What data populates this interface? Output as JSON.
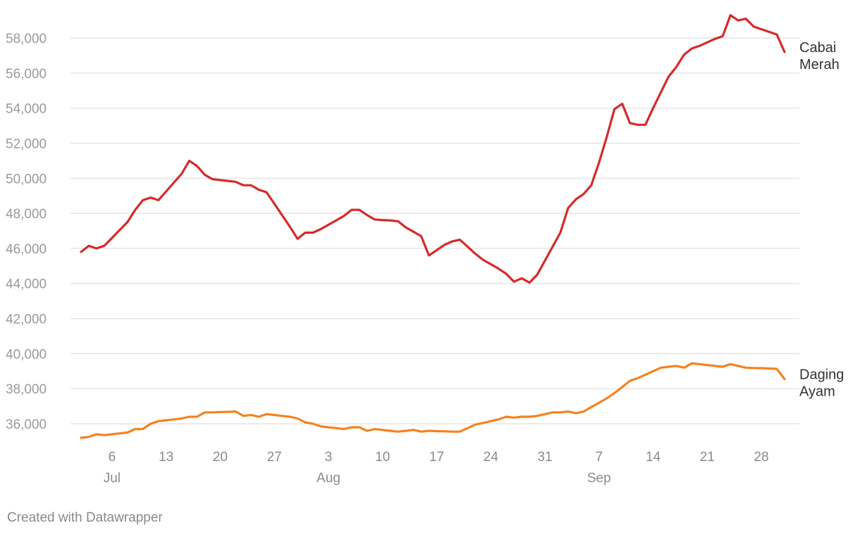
{
  "chart_data": {
    "type": "line",
    "y_ticks": [
      36000,
      38000,
      40000,
      42000,
      44000,
      46000,
      48000,
      50000,
      52000,
      54000,
      56000,
      58000
    ],
    "y_tick_labels": [
      "36,000",
      "38,000",
      "40,000",
      "42,000",
      "44,000",
      "46,000",
      "48,000",
      "50,000",
      "52,000",
      "54,000",
      "56,000",
      "58,000"
    ],
    "ylim": [
      35000,
      59400
    ],
    "xlim": [
      "2021-07-02",
      "2021-09-30"
    ],
    "x_ticks": [
      {
        "date": "2021-07-06",
        "label": "6",
        "month": "Jul"
      },
      {
        "date": "2021-07-13",
        "label": "13",
        "month": ""
      },
      {
        "date": "2021-07-20",
        "label": "20",
        "month": ""
      },
      {
        "date": "2021-07-27",
        "label": "27",
        "month": ""
      },
      {
        "date": "2021-08-03",
        "label": "3",
        "month": "Aug"
      },
      {
        "date": "2021-08-10",
        "label": "10",
        "month": ""
      },
      {
        "date": "2021-08-17",
        "label": "17",
        "month": ""
      },
      {
        "date": "2021-08-24",
        "label": "24",
        "month": ""
      },
      {
        "date": "2021-08-31",
        "label": "31",
        "month": ""
      },
      {
        "date": "2021-09-07",
        "label": "7",
        "month": "Sep"
      },
      {
        "date": "2021-09-14",
        "label": "14",
        "month": ""
      },
      {
        "date": "2021-09-21",
        "label": "21",
        "month": ""
      },
      {
        "date": "2021-09-28",
        "label": "28",
        "month": ""
      }
    ],
    "grid": true,
    "series": [
      {
        "name": "Cabai Merah",
        "label_lines": [
          "Cabai",
          "Merah"
        ],
        "color": "#d52a2a",
        "points": [
          [
            "2021-07-02",
            45800
          ],
          [
            "2021-07-03",
            46150
          ],
          [
            "2021-07-04",
            46000
          ],
          [
            "2021-07-05",
            46150
          ],
          [
            "2021-07-06",
            46600
          ],
          [
            "2021-07-07",
            47050
          ],
          [
            "2021-07-08",
            47500
          ],
          [
            "2021-07-09",
            48200
          ],
          [
            "2021-07-10",
            48750
          ],
          [
            "2021-07-11",
            48900
          ],
          [
            "2021-07-12",
            48750
          ],
          [
            "2021-07-13",
            49250
          ],
          [
            "2021-07-14",
            49750
          ],
          [
            "2021-07-15",
            50250
          ],
          [
            "2021-07-16",
            51000
          ],
          [
            "2021-07-17",
            50700
          ],
          [
            "2021-07-18",
            50200
          ],
          [
            "2021-07-19",
            49950
          ],
          [
            "2021-07-20",
            49900
          ],
          [
            "2021-07-21",
            49850
          ],
          [
            "2021-07-22",
            49800
          ],
          [
            "2021-07-23",
            49600
          ],
          [
            "2021-07-24",
            49600
          ],
          [
            "2021-07-25",
            49350
          ],
          [
            "2021-07-26",
            49200
          ],
          [
            "2021-07-27",
            48550
          ],
          [
            "2021-07-28",
            47900
          ],
          [
            "2021-07-29",
            47250
          ],
          [
            "2021-07-30",
            46550
          ],
          [
            "2021-07-31",
            46900
          ],
          [
            "2021-08-01",
            46900
          ],
          [
            "2021-08-02",
            47100
          ],
          [
            "2021-08-03",
            47350
          ],
          [
            "2021-08-04",
            47600
          ],
          [
            "2021-08-05",
            47850
          ],
          [
            "2021-08-06",
            48200
          ],
          [
            "2021-08-07",
            48200
          ],
          [
            "2021-08-08",
            47900
          ],
          [
            "2021-08-09",
            47650
          ],
          [
            "2021-08-10",
            47620
          ],
          [
            "2021-08-11",
            47600
          ],
          [
            "2021-08-12",
            47550
          ],
          [
            "2021-08-13",
            47200
          ],
          [
            "2021-08-14",
            46950
          ],
          [
            "2021-08-15",
            46700
          ],
          [
            "2021-08-16",
            45600
          ],
          [
            "2021-08-17",
            45900
          ],
          [
            "2021-08-18",
            46200
          ],
          [
            "2021-08-19",
            46400
          ],
          [
            "2021-08-20",
            46500
          ],
          [
            "2021-08-21",
            46100
          ],
          [
            "2021-08-22",
            45700
          ],
          [
            "2021-08-23",
            45350
          ],
          [
            "2021-08-24",
            45100
          ],
          [
            "2021-08-25",
            44850
          ],
          [
            "2021-08-26",
            44550
          ],
          [
            "2021-08-27",
            44100
          ],
          [
            "2021-08-28",
            44300
          ],
          [
            "2021-08-29",
            44050
          ],
          [
            "2021-08-30",
            44500
          ],
          [
            "2021-08-31",
            45300
          ],
          [
            "2021-09-01",
            46100
          ],
          [
            "2021-09-02",
            46900
          ],
          [
            "2021-09-03",
            48300
          ],
          [
            "2021-09-04",
            48800
          ],
          [
            "2021-09-05",
            49100
          ],
          [
            "2021-09-06",
            49600
          ],
          [
            "2021-09-07",
            50900
          ],
          [
            "2021-09-08",
            52350
          ],
          [
            "2021-09-09",
            53950
          ],
          [
            "2021-09-10",
            54250
          ],
          [
            "2021-09-11",
            53150
          ],
          [
            "2021-09-12",
            53050
          ],
          [
            "2021-09-13",
            53050
          ],
          [
            "2021-09-14",
            54000
          ],
          [
            "2021-09-15",
            54900
          ],
          [
            "2021-09-16",
            55800
          ],
          [
            "2021-09-17",
            56350
          ],
          [
            "2021-09-18",
            57050
          ],
          [
            "2021-09-19",
            57400
          ],
          [
            "2021-09-20",
            57550
          ],
          [
            "2021-09-21",
            57750
          ],
          [
            "2021-09-22",
            57950
          ],
          [
            "2021-09-23",
            58100
          ],
          [
            "2021-09-24",
            59300
          ],
          [
            "2021-09-25",
            59000
          ],
          [
            "2021-09-26",
            59100
          ],
          [
            "2021-09-27",
            58650
          ],
          [
            "2021-09-28",
            58500
          ],
          [
            "2021-09-29",
            58350
          ],
          [
            "2021-09-30",
            58200
          ],
          [
            "2021-10-01",
            57200
          ]
        ]
      },
      {
        "name": "Daging Ayam",
        "label_lines": [
          "Daging",
          "Ayam"
        ],
        "color": "#f5821f",
        "points": [
          [
            "2021-07-02",
            35200
          ],
          [
            "2021-07-03",
            35250
          ],
          [
            "2021-07-04",
            35400
          ],
          [
            "2021-07-05",
            35350
          ],
          [
            "2021-07-06",
            35400
          ],
          [
            "2021-07-07",
            35450
          ],
          [
            "2021-07-08",
            35500
          ],
          [
            "2021-07-09",
            35700
          ],
          [
            "2021-07-10",
            35700
          ],
          [
            "2021-07-11",
            36000
          ],
          [
            "2021-07-12",
            36150
          ],
          [
            "2021-07-13",
            36200
          ],
          [
            "2021-07-14",
            36250
          ],
          [
            "2021-07-15",
            36300
          ],
          [
            "2021-07-16",
            36400
          ],
          [
            "2021-07-17",
            36400
          ],
          [
            "2021-07-18",
            36650
          ],
          [
            "2021-07-19",
            36650
          ],
          [
            "2021-07-20",
            36670
          ],
          [
            "2021-07-21",
            36680
          ],
          [
            "2021-07-22",
            36700
          ],
          [
            "2021-07-23",
            36450
          ],
          [
            "2021-07-24",
            36500
          ],
          [
            "2021-07-25",
            36400
          ],
          [
            "2021-07-26",
            36550
          ],
          [
            "2021-07-27",
            36500
          ],
          [
            "2021-07-28",
            36450
          ],
          [
            "2021-07-29",
            36400
          ],
          [
            "2021-07-30",
            36300
          ],
          [
            "2021-07-31",
            36080
          ],
          [
            "2021-08-01",
            36000
          ],
          [
            "2021-08-02",
            35850
          ],
          [
            "2021-08-03",
            35800
          ],
          [
            "2021-08-04",
            35750
          ],
          [
            "2021-08-05",
            35700
          ],
          [
            "2021-08-06",
            35800
          ],
          [
            "2021-08-07",
            35800
          ],
          [
            "2021-08-08",
            35600
          ],
          [
            "2021-08-09",
            35700
          ],
          [
            "2021-08-10",
            35650
          ],
          [
            "2021-08-11",
            35600
          ],
          [
            "2021-08-12",
            35550
          ],
          [
            "2021-08-13",
            35600
          ],
          [
            "2021-08-14",
            35650
          ],
          [
            "2021-08-15",
            35550
          ],
          [
            "2021-08-16",
            35600
          ],
          [
            "2021-08-17",
            35580
          ],
          [
            "2021-08-18",
            35570
          ],
          [
            "2021-08-19",
            35550
          ],
          [
            "2021-08-20",
            35550
          ],
          [
            "2021-08-21",
            35750
          ],
          [
            "2021-08-22",
            35950
          ],
          [
            "2021-08-23",
            36050
          ],
          [
            "2021-08-24",
            36150
          ],
          [
            "2021-08-25",
            36250
          ],
          [
            "2021-08-26",
            36400
          ],
          [
            "2021-08-27",
            36350
          ],
          [
            "2021-08-28",
            36400
          ],
          [
            "2021-08-29",
            36400
          ],
          [
            "2021-08-30",
            36450
          ],
          [
            "2021-08-31",
            36550
          ],
          [
            "2021-09-01",
            36650
          ],
          [
            "2021-09-02",
            36650
          ],
          [
            "2021-09-03",
            36700
          ],
          [
            "2021-09-04",
            36600
          ],
          [
            "2021-09-05",
            36700
          ],
          [
            "2021-09-06",
            36950
          ],
          [
            "2021-09-07",
            37200
          ],
          [
            "2021-09-08",
            37450
          ],
          [
            "2021-09-09",
            37750
          ],
          [
            "2021-09-10",
            38100
          ],
          [
            "2021-09-11",
            38450
          ],
          [
            "2021-09-12",
            38600
          ],
          [
            "2021-09-13",
            38800
          ],
          [
            "2021-09-14",
            39000
          ],
          [
            "2021-09-15",
            39200
          ],
          [
            "2021-09-16",
            39250
          ],
          [
            "2021-09-17",
            39300
          ],
          [
            "2021-09-18",
            39200
          ],
          [
            "2021-09-19",
            39450
          ],
          [
            "2021-09-20",
            39400
          ],
          [
            "2021-09-21",
            39350
          ],
          [
            "2021-09-22",
            39300
          ],
          [
            "2021-09-23",
            39250
          ],
          [
            "2021-09-24",
            39400
          ],
          [
            "2021-09-25",
            39300
          ],
          [
            "2021-09-26",
            39200
          ],
          [
            "2021-09-27",
            39180
          ],
          [
            "2021-09-28",
            39170
          ],
          [
            "2021-09-29",
            39150
          ],
          [
            "2021-09-30",
            39130
          ],
          [
            "2021-10-01",
            38550
          ]
        ]
      }
    ]
  },
  "footer": {
    "credit": "Created with Datawrapper"
  }
}
